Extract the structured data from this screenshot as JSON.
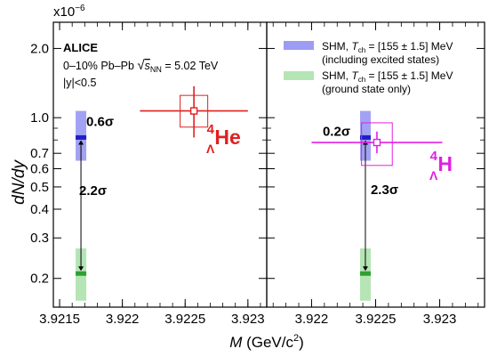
{
  "chart_data": {
    "type": "scatter",
    "y_scale": "log",
    "ylabel_parts": [
      "dN/dy"
    ],
    "xlabel_parts": [
      "M",
      " (GeV/c",
      "2",
      ")"
    ],
    "y_exponent": {
      "base": "x10",
      "exp": "−6"
    },
    "ylim": [
      0.15,
      2.6
    ],
    "y_ticks": [
      {
        "value": 2.0,
        "label": "2.0"
      },
      {
        "value": 1.0,
        "label": "1.0"
      },
      {
        "value": 0.7,
        "label": "0.7"
      },
      {
        "value": 0.6,
        "label": "0.6"
      },
      {
        "value": 0.5,
        "label": "0.5"
      },
      {
        "value": 0.4,
        "label": "0.4"
      },
      {
        "value": 0.3,
        "label": "0.3"
      },
      {
        "value": 0.2,
        "label": "0.2"
      }
    ],
    "y_minor_ticks": [
      0.9,
      0.8
    ],
    "info": {
      "experiment": "ALICE",
      "system_prefix": "0–10% Pb–Pb ",
      "sqrt_sym": "√",
      "snn_s": "s",
      "snn_sub": "NN",
      "energy": " = 5.02 TeV",
      "rapidity": "|y|<0.5"
    },
    "legend": [
      {
        "pre": "SHM, ",
        "t": "T",
        "tsub": "ch",
        "post": " = [155 ± 1.5] MeV",
        "note": "(including excited states)",
        "color": "#7b7bf0"
      },
      {
        "pre": "SHM, ",
        "t": "T",
        "tsub": "ch",
        "post": " = [155 ± 1.5] MeV",
        "note": "(ground state only)",
        "color": "#a8e0a8"
      }
    ],
    "panels": [
      {
        "xlim": [
          3.92145,
          3.92315
        ],
        "x_ticks": [
          {
            "value": 3.9215,
            "label": "3.9215"
          },
          {
            "value": 3.922,
            "label": "3.922"
          },
          {
            "value": 3.9225,
            "label": "3.9225"
          },
          {
            "value": 3.923,
            "label": "3.923"
          }
        ],
        "x_minor_step": 0.0001,
        "species_mass": "4",
        "species_sub": "Λ",
        "species_name": "He",
        "species_color": "#e02020",
        "data_point": {
          "x": 3.92257,
          "y": 1.07,
          "x_err": 0.00043,
          "y_err_up": 0.3,
          "y_err_down": 0.25,
          "x_sys": 0.00011,
          "y_sys_up": 0.18,
          "y_sys_down": 0.16
        },
        "shm_excited": {
          "x": 3.92167,
          "y": 0.82,
          "band_low": 0.65,
          "band_high": 1.07,
          "color": "#2020c8",
          "band_color": "#7b7bf0"
        },
        "shm_ground": {
          "x": 3.92167,
          "y": 0.21,
          "band_low": 0.16,
          "band_high": 0.27,
          "color": "#2fa02f",
          "band_color": "#a8e0a8"
        },
        "sigma_excited": "0.6σ",
        "sigma_ground": "2.2σ"
      },
      {
        "xlim": [
          3.92165,
          3.92335
        ],
        "x_ticks": [
          {
            "value": 3.922,
            "label": "3.922"
          },
          {
            "value": 3.9225,
            "label": "3.9225"
          },
          {
            "value": 3.923,
            "label": "3.923"
          }
        ],
        "x_minor_step": 0.0001,
        "species_mass": "4",
        "species_sub": "Λ",
        "species_name": "H",
        "species_color": "#e020e0",
        "data_point": {
          "x": 3.92251,
          "y": 0.78,
          "x_err": 0.00051,
          "y_err_up": 0.09,
          "y_err_down": 0.08,
          "x_sys": 0.00012,
          "y_sys_up": 0.17,
          "y_sys_down": 0.16
        },
        "shm_excited": {
          "x": 3.92242,
          "y": 0.82,
          "band_low": 0.65,
          "band_high": 1.07,
          "color": "#2020c8",
          "band_color": "#7b7bf0"
        },
        "shm_ground": {
          "x": 3.92242,
          "y": 0.21,
          "band_low": 0.16,
          "band_high": 0.27,
          "color": "#2fa02f",
          "band_color": "#a8e0a8"
        },
        "sigma_excited": "0.2σ",
        "sigma_ground": "2.3σ"
      }
    ]
  }
}
